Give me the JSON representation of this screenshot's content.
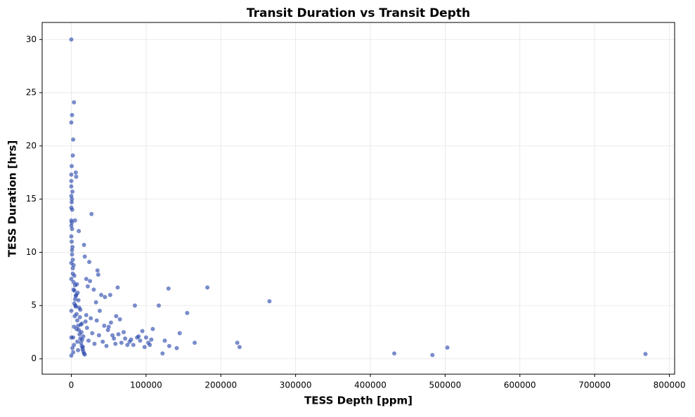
{
  "chart_data": {
    "type": "scatter",
    "title": "Transit Duration vs Transit Depth",
    "x_label": "TESS Depth [ppm]",
    "y_label": "TESS Duration [hrs]",
    "color": "#1f3fa8",
    "grid": true,
    "xlim": [
      -39000,
      807000
    ],
    "ylim": [
      -1.45,
      31.6
    ],
    "xticks": [
      0,
      100000,
      200000,
      300000,
      400000,
      500000,
      600000,
      700000,
      800000
    ],
    "yticks": [
      0,
      5,
      10,
      15,
      20,
      25,
      30
    ],
    "x": [
      0,
      3500,
      1000,
      0,
      2500,
      2000,
      6000,
      6500,
      500,
      0,
      0,
      0,
      1500,
      0,
      500,
      0,
      27000,
      0,
      5000,
      10000,
      17000,
      18000,
      24000,
      35000,
      36000,
      62000,
      130000,
      182000,
      265000,
      85000,
      117000,
      155000,
      222000,
      225000,
      432000,
      483000,
      503000,
      768000,
      145000,
      165000,
      131000,
      125000,
      141000,
      122000,
      109000,
      105000,
      100000,
      95000,
      90000,
      80000,
      75000,
      70000,
      65000,
      60000,
      55000,
      50000,
      52000,
      45000,
      40000,
      38000,
      33000,
      30000,
      25000,
      22000,
      20000,
      1000,
      2000,
      3000,
      4000,
      5000,
      6000,
      7000,
      8000,
      9000,
      10000,
      11000,
      12000,
      13000,
      14000,
      15000,
      16000,
      17000,
      18000,
      19000,
      20000,
      1500,
      2500,
      3500,
      4500,
      5500,
      6500,
      7500,
      8500,
      9500,
      10500,
      11500,
      12500,
      13500,
      14500,
      15500,
      500,
      1000,
      2000,
      3000,
      4000,
      5000,
      6000,
      7000,
      8000,
      9000,
      12000,
      14000,
      16000,
      21000,
      23000,
      26000,
      28000,
      31000,
      34000,
      37000,
      42000,
      44000,
      47000,
      49000,
      53000,
      57000,
      59000,
      63000,
      67000,
      72000,
      78000,
      83000,
      88000,
      92000,
      98000,
      103000,
      107000,
      0,
      0,
      0,
      0,
      0,
      0,
      0,
      1000,
      1500,
      2000,
      3000,
      4000,
      2500,
      3500,
      800,
      1200,
      600
    ],
    "y": [
      30.0,
      24.1,
      22.9,
      22.2,
      20.6,
      19.1,
      17.5,
      17.1,
      18.1,
      17.3,
      16.7,
      16.2,
      15.7,
      15.3,
      14.7,
      14.2,
      13.6,
      13.0,
      13.0,
      12.0,
      10.7,
      9.6,
      9.1,
      8.3,
      7.9,
      6.7,
      6.6,
      6.7,
      5.4,
      5.0,
      5.0,
      4.3,
      1.5,
      1.1,
      0.5,
      0.35,
      1.05,
      0.45,
      2.4,
      1.5,
      1.2,
      1.7,
      1.0,
      0.5,
      2.8,
      1.3,
      2.0,
      2.6,
      2.1,
      1.8,
      1.3,
      2.5,
      3.7,
      4.0,
      2.2,
      3.0,
      6.0,
      5.8,
      6.0,
      4.5,
      5.3,
      6.5,
      7.3,
      6.8,
      7.5,
      9.8,
      8.5,
      7.2,
      6.4,
      5.6,
      4.9,
      4.2,
      3.6,
      3.1,
      2.7,
      2.3,
      1.9,
      1.5,
      1.2,
      0.9,
      0.7,
      0.5,
      0.4,
      3.5,
      4.1,
      1.0,
      2.0,
      3.0,
      4.0,
      5.0,
      6.0,
      7.0,
      6.2,
      5.5,
      4.8,
      3.9,
      3.2,
      2.5,
      1.8,
      1.1,
      11.0,
      10.2,
      9.3,
      8.8,
      7.8,
      6.9,
      5.9,
      2.8,
      1.6,
      0.8,
      4.6,
      3.3,
      2.1,
      2.9,
      1.7,
      3.8,
      2.4,
      1.4,
      3.6,
      2.2,
      1.6,
      3.1,
      1.2,
      2.7,
      3.4,
      1.9,
      1.4,
      2.3,
      1.5,
      1.9,
      1.6,
      1.3,
      2.0,
      1.7,
      1.1,
      1.5,
      1.8,
      12.5,
      11.5,
      9.0,
      7.5,
      4.5,
      2.0,
      0.3,
      12.2,
      10.5,
      8.0,
      6.5,
      5.2,
      0.6,
      1.3,
      15.0,
      14.0,
      12.8
    ]
  }
}
